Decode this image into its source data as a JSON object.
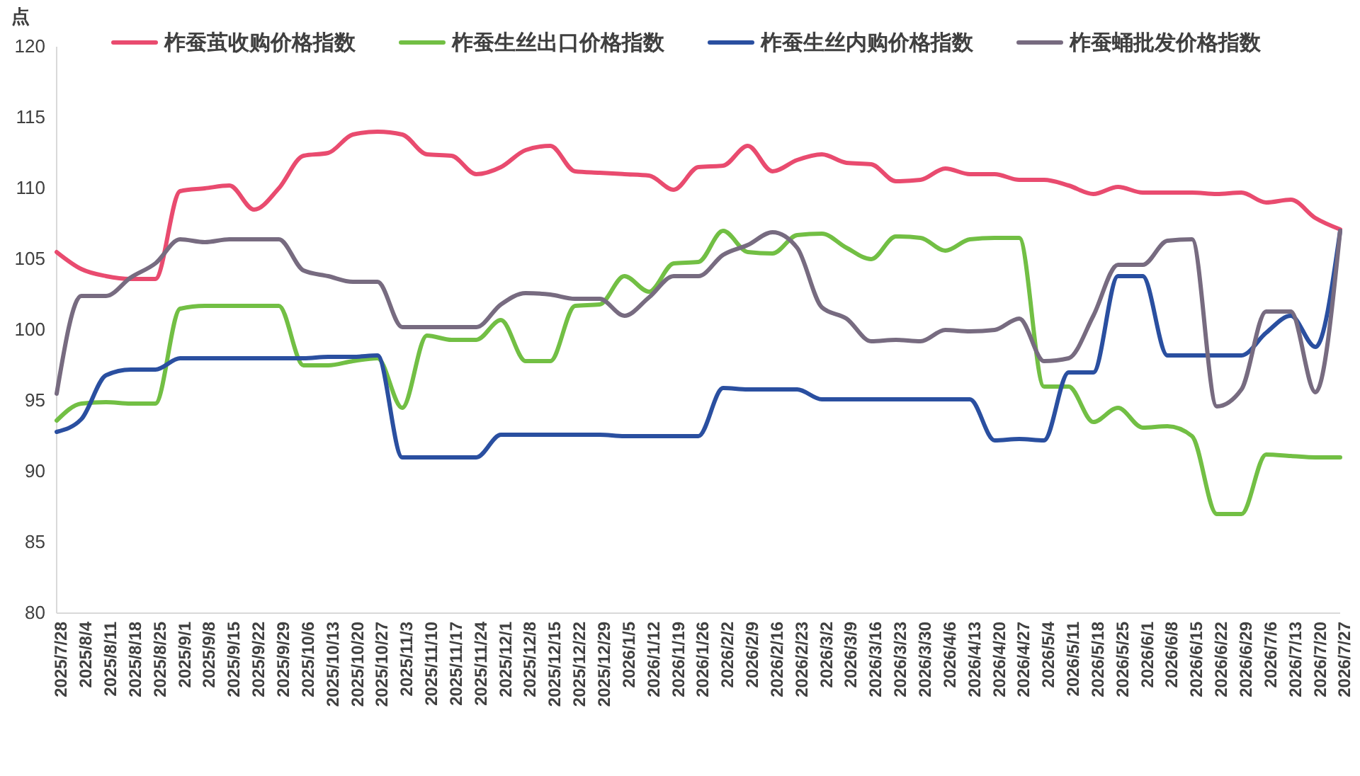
{
  "chart_data": {
    "type": "line",
    "ylabel": "点",
    "legend": "top",
    "grid": false,
    "line_style": "solid",
    "marker": "none",
    "categories": [
      "2025/7/28",
      "2025/8/4",
      "2025/8/11",
      "2025/8/18",
      "2025/8/25",
      "2025/9/1",
      "2025/9/8",
      "2025/9/15",
      "2025/9/22",
      "2025/9/29",
      "2025/10/6",
      "2025/10/13",
      "2025/10/20",
      "2025/10/27",
      "2025/11/3",
      "2025/11/10",
      "2025/11/17",
      "2025/11/24",
      "2025/12/1",
      "2025/12/8",
      "2025/12/15",
      "2025/12/22",
      "2025/12/29",
      "2026/1/5",
      "2026/1/12",
      "2026/1/19",
      "2026/1/26",
      "2026/2/2",
      "2026/2/9",
      "2026/2/16",
      "2026/2/23",
      "2026/3/2",
      "2026/3/9",
      "2026/3/16",
      "2026/3/23",
      "2026/3/30",
      "2026/4/6",
      "2026/4/13",
      "2026/4/20",
      "2026/4/27",
      "2026/5/4",
      "2026/5/11",
      "2026/5/18",
      "2026/5/25",
      "2026/6/1",
      "2026/6/8",
      "2026/6/15",
      "2026/6/22",
      "2026/6/29",
      "2026/7/6",
      "2026/7/13",
      "2026/7/20",
      "2026/7/27"
    ],
    "ylim": [
      80,
      120
    ],
    "yticks": [
      80,
      85,
      90,
      95,
      100,
      105,
      110,
      115,
      120
    ],
    "series": [
      {
        "name": "柞蚕茧收购价格指数",
        "color": "#e94b6f",
        "values": [
          105.5,
          104.3,
          103.8,
          103.6,
          103.6,
          109.8,
          110,
          110.2,
          108.5,
          110,
          112.3,
          112.5,
          113.8,
          114,
          113.8,
          112.4,
          112.3,
          111,
          111.5,
          112.7,
          113,
          111.2,
          111.1,
          111,
          110.9,
          109.9,
          111.5,
          111.6,
          113,
          111.2,
          112,
          112.4,
          111.8,
          111.7,
          110.5,
          110.6,
          111.4,
          111,
          111,
          110.6,
          110.6,
          110.2,
          109.6,
          110.1,
          109.7,
          109.7,
          109.7,
          109.6,
          109.7,
          109,
          109.2,
          107.9,
          107.1
        ]
      },
      {
        "name": "柞蚕生丝出口价格指数",
        "color": "#72bf44",
        "values": [
          93.6,
          94.8,
          94.9,
          94.8,
          94.8,
          101.5,
          101.7,
          101.7,
          101.7,
          101.7,
          97.5,
          97.5,
          97.8,
          98,
          94.5,
          99.6,
          99.3,
          99.3,
          100.7,
          97.8,
          97.8,
          101.7,
          101.8,
          103.8,
          102.7,
          104.7,
          104.8,
          107,
          105.5,
          105.4,
          106.7,
          106.8,
          105.8,
          105,
          106.6,
          106.5,
          105.6,
          106.4,
          106.5,
          106.5,
          96,
          96,
          93.5,
          94.5,
          93.1,
          93.2,
          92.5,
          87,
          87,
          91.2,
          91.1,
          91,
          91
        ]
      },
      {
        "name": "柞蚕生丝内购价格指数",
        "color": "#2a4fa0",
        "values": [
          92.8,
          93.7,
          96.8,
          97.2,
          97.2,
          98,
          98,
          98,
          98,
          98,
          98,
          98.1,
          98.1,
          98.2,
          91,
          91,
          91,
          91,
          92.6,
          92.6,
          92.6,
          92.6,
          92.6,
          92.5,
          92.5,
          92.5,
          92.5,
          95.9,
          95.8,
          95.8,
          95.8,
          95.1,
          95.1,
          95.1,
          95.1,
          95.1,
          95.1,
          95.1,
          92.2,
          92.3,
          92.2,
          97,
          97,
          103.8,
          103.8,
          98.2,
          98.2,
          98.2,
          98.2,
          99.8,
          101,
          98.8,
          107
        ]
      },
      {
        "name": "柞蚕蛹批发价格指数",
        "color": "#776b80",
        "values": [
          95.5,
          102.4,
          102.4,
          103.7,
          104.7,
          106.4,
          106.2,
          106.4,
          106.4,
          106.4,
          104.2,
          103.8,
          103.4,
          103.4,
          100.2,
          100.2,
          100.2,
          100.2,
          101.8,
          102.6,
          102.5,
          102.2,
          102.2,
          101,
          102.3,
          103.8,
          103.8,
          105.3,
          106,
          106.9,
          105.8,
          101.6,
          100.8,
          99.2,
          99.3,
          99.2,
          100,
          99.9,
          100,
          100.8,
          97.8,
          98,
          101,
          104.6,
          104.6,
          106.3,
          106.4,
          94.6,
          95.8,
          101.3,
          101.3,
          95.6,
          107
        ]
      }
    ]
  }
}
